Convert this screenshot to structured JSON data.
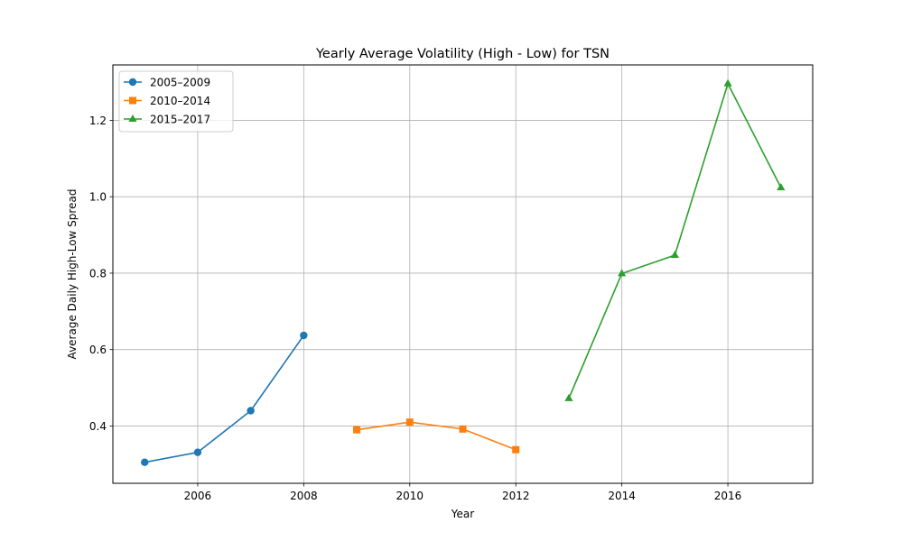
{
  "chart_data": {
    "type": "line",
    "title": "Yearly Average Volatility (High - Low) for TSN",
    "xlabel": "Year",
    "ylabel": "Average Daily High-Low Spread",
    "xlim": [
      2004.4,
      2017.6
    ],
    "ylim": [
      0.25,
      1.345
    ],
    "xticks": [
      2006,
      2008,
      2010,
      2012,
      2014,
      2016
    ],
    "yticks": [
      0.4,
      0.6,
      0.8,
      1.0,
      1.2
    ],
    "ytick_labels": [
      "0.4",
      "0.6",
      "0.8",
      "1.0",
      "1.2"
    ],
    "grid": true,
    "legend_position": "top-left",
    "series": [
      {
        "name": "2005–2009",
        "color": "#1f77b4",
        "marker": "circle",
        "x": [
          2005,
          2006,
          2007,
          2008
        ],
        "values": [
          0.305,
          0.331,
          0.44,
          0.637
        ]
      },
      {
        "name": "2010–2014",
        "color": "#ff7f0e",
        "marker": "square",
        "x": [
          2009,
          2010,
          2011,
          2012
        ],
        "values": [
          0.39,
          0.41,
          0.392,
          0.338
        ]
      },
      {
        "name": "2015–2017",
        "color": "#2ca02c",
        "marker": "triangle",
        "x": [
          2013,
          2014,
          2015,
          2016,
          2017
        ],
        "values": [
          0.472,
          0.799,
          0.847,
          1.296,
          1.024
        ]
      }
    ]
  }
}
